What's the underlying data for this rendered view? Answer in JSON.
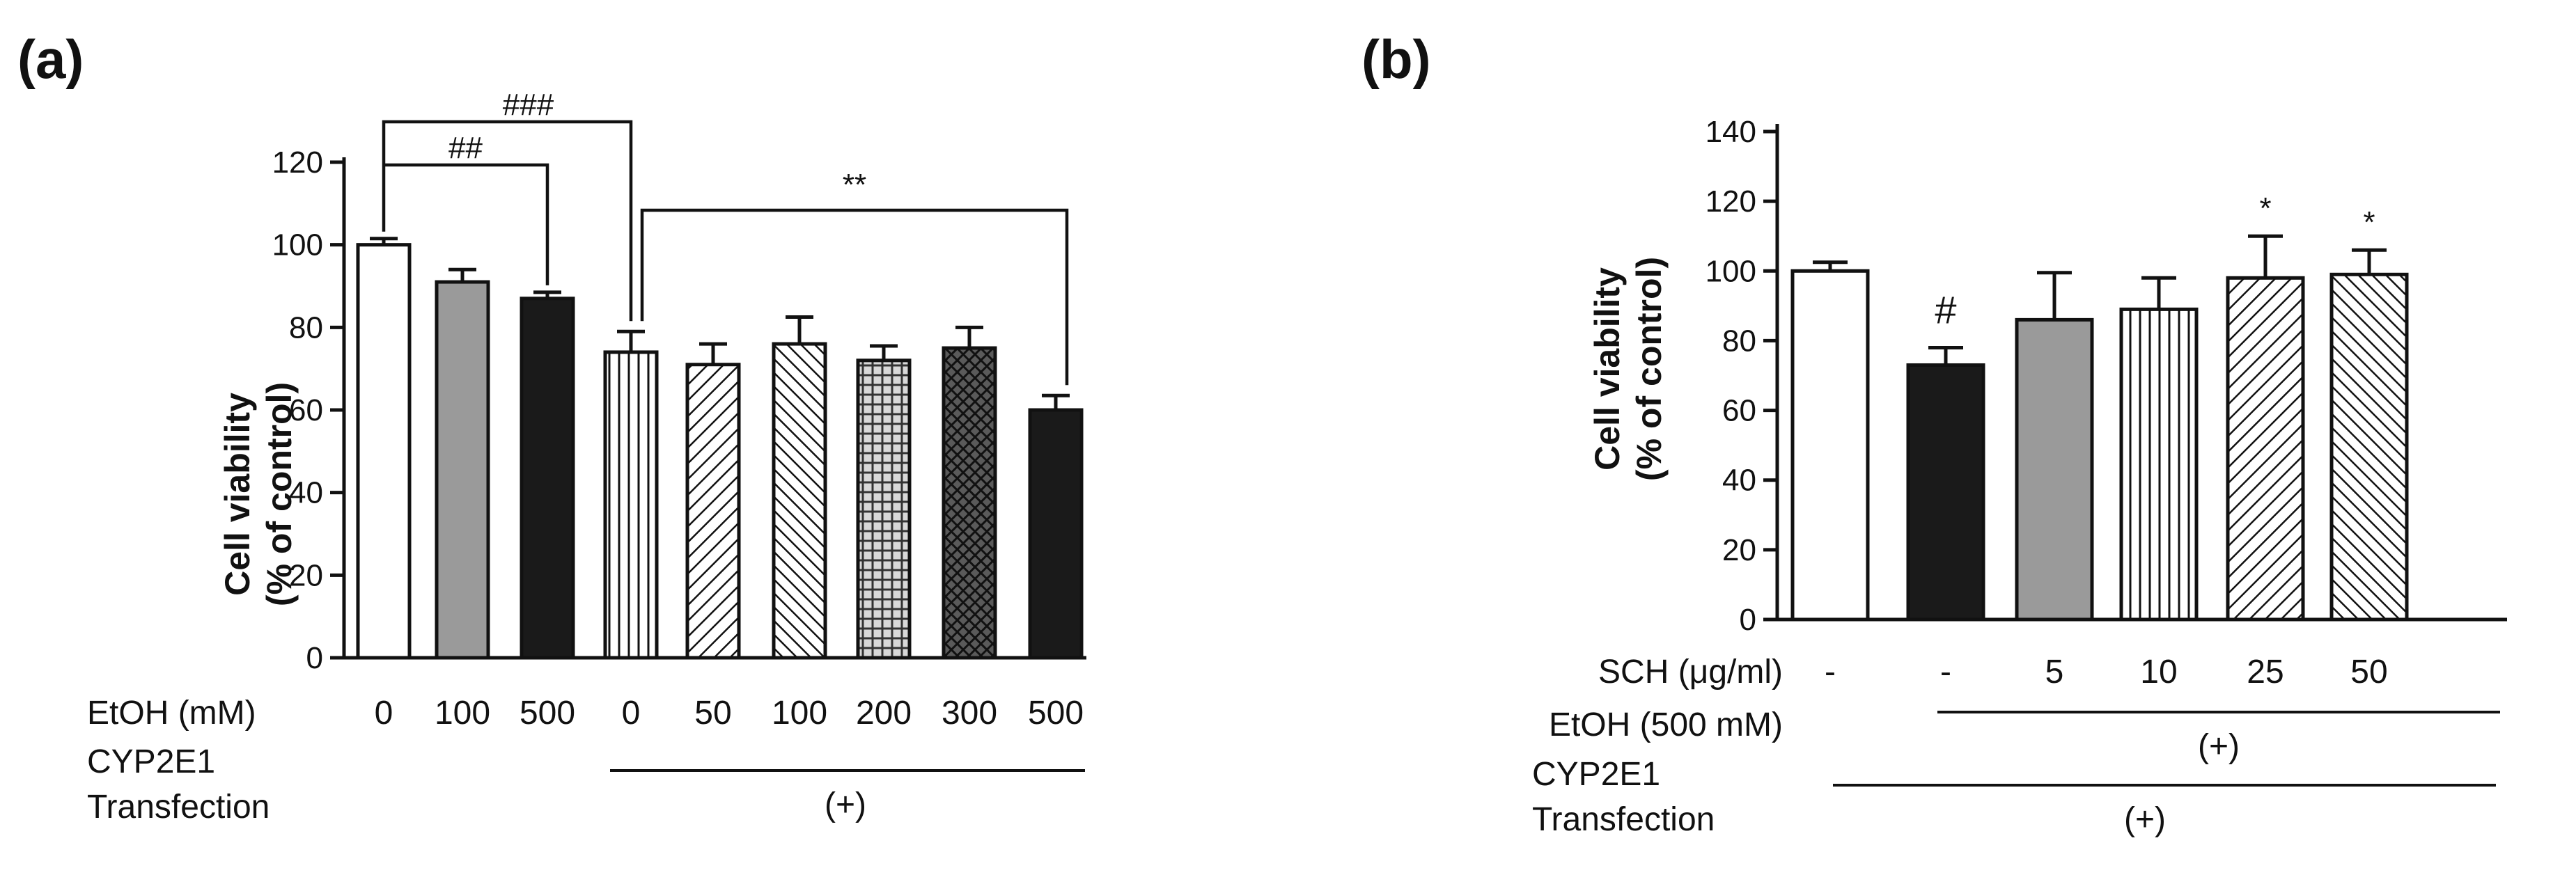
{
  "chart_data": [
    {
      "type": "bar",
      "panel_label": "(a)",
      "ylabel_line1": "Cell viability",
      "ylabel_line2": "(% of control)",
      "ylim": [
        0,
        120
      ],
      "yticks": [
        0,
        20,
        40,
        60,
        80,
        100,
        120
      ],
      "categories": [
        "0",
        "100",
        "500",
        "0",
        "50",
        "100",
        "200",
        "300",
        "500"
      ],
      "values": [
        100,
        91,
        87,
        74,
        71,
        76,
        72,
        75,
        60
      ],
      "errors": [
        1.5,
        3,
        1.5,
        5,
        5,
        6.5,
        3.5,
        5,
        3.5
      ],
      "fills": [
        "white",
        "gray",
        "black",
        "vlines",
        "diag-right",
        "diag-left",
        "crosshatch",
        "dark-crosshatch",
        "black"
      ],
      "row_labels": {
        "etoh": "EtOH (mM)",
        "cyp_line1": "CYP2E1",
        "cyp_line2": "Transfection",
        "cyp_marker": "(+)"
      },
      "significance": [
        {
          "label": "###",
          "from": 0,
          "to": 3
        },
        {
          "label": "##",
          "from": 0,
          "to": 2
        },
        {
          "label": "**",
          "from": 3,
          "to": 8
        }
      ]
    },
    {
      "type": "bar",
      "panel_label": "(b)",
      "ylabel_line1": "Cell viability",
      "ylabel_line2": "(% of control)",
      "ylim": [
        0,
        140
      ],
      "yticks": [
        0,
        20,
        40,
        60,
        80,
        100,
        120,
        140
      ],
      "categories": [
        "-",
        "-",
        "5",
        "10",
        "25",
        "50"
      ],
      "values": [
        100,
        73,
        86,
        89,
        98,
        99
      ],
      "errors": [
        2.5,
        5,
        13.5,
        9,
        12,
        7
      ],
      "fills": [
        "white",
        "black",
        "gray",
        "vlines",
        "diag-right",
        "diag-left"
      ],
      "bar_marks": [
        "",
        "#",
        "",
        "",
        "*",
        "*"
      ],
      "row_labels": {
        "sch": "SCH (μg/ml)",
        "etoh": "EtOH (500 mM)",
        "etoh_marker": "(+)",
        "cyp_line1": "CYP2E1",
        "cyp_line2": "Transfection",
        "cyp_marker": "(+)"
      }
    }
  ],
  "colors": {
    "black": "#1a1a1a",
    "gray": "#9a9a9a",
    "white": "#ffffff",
    "line": "#111111"
  }
}
